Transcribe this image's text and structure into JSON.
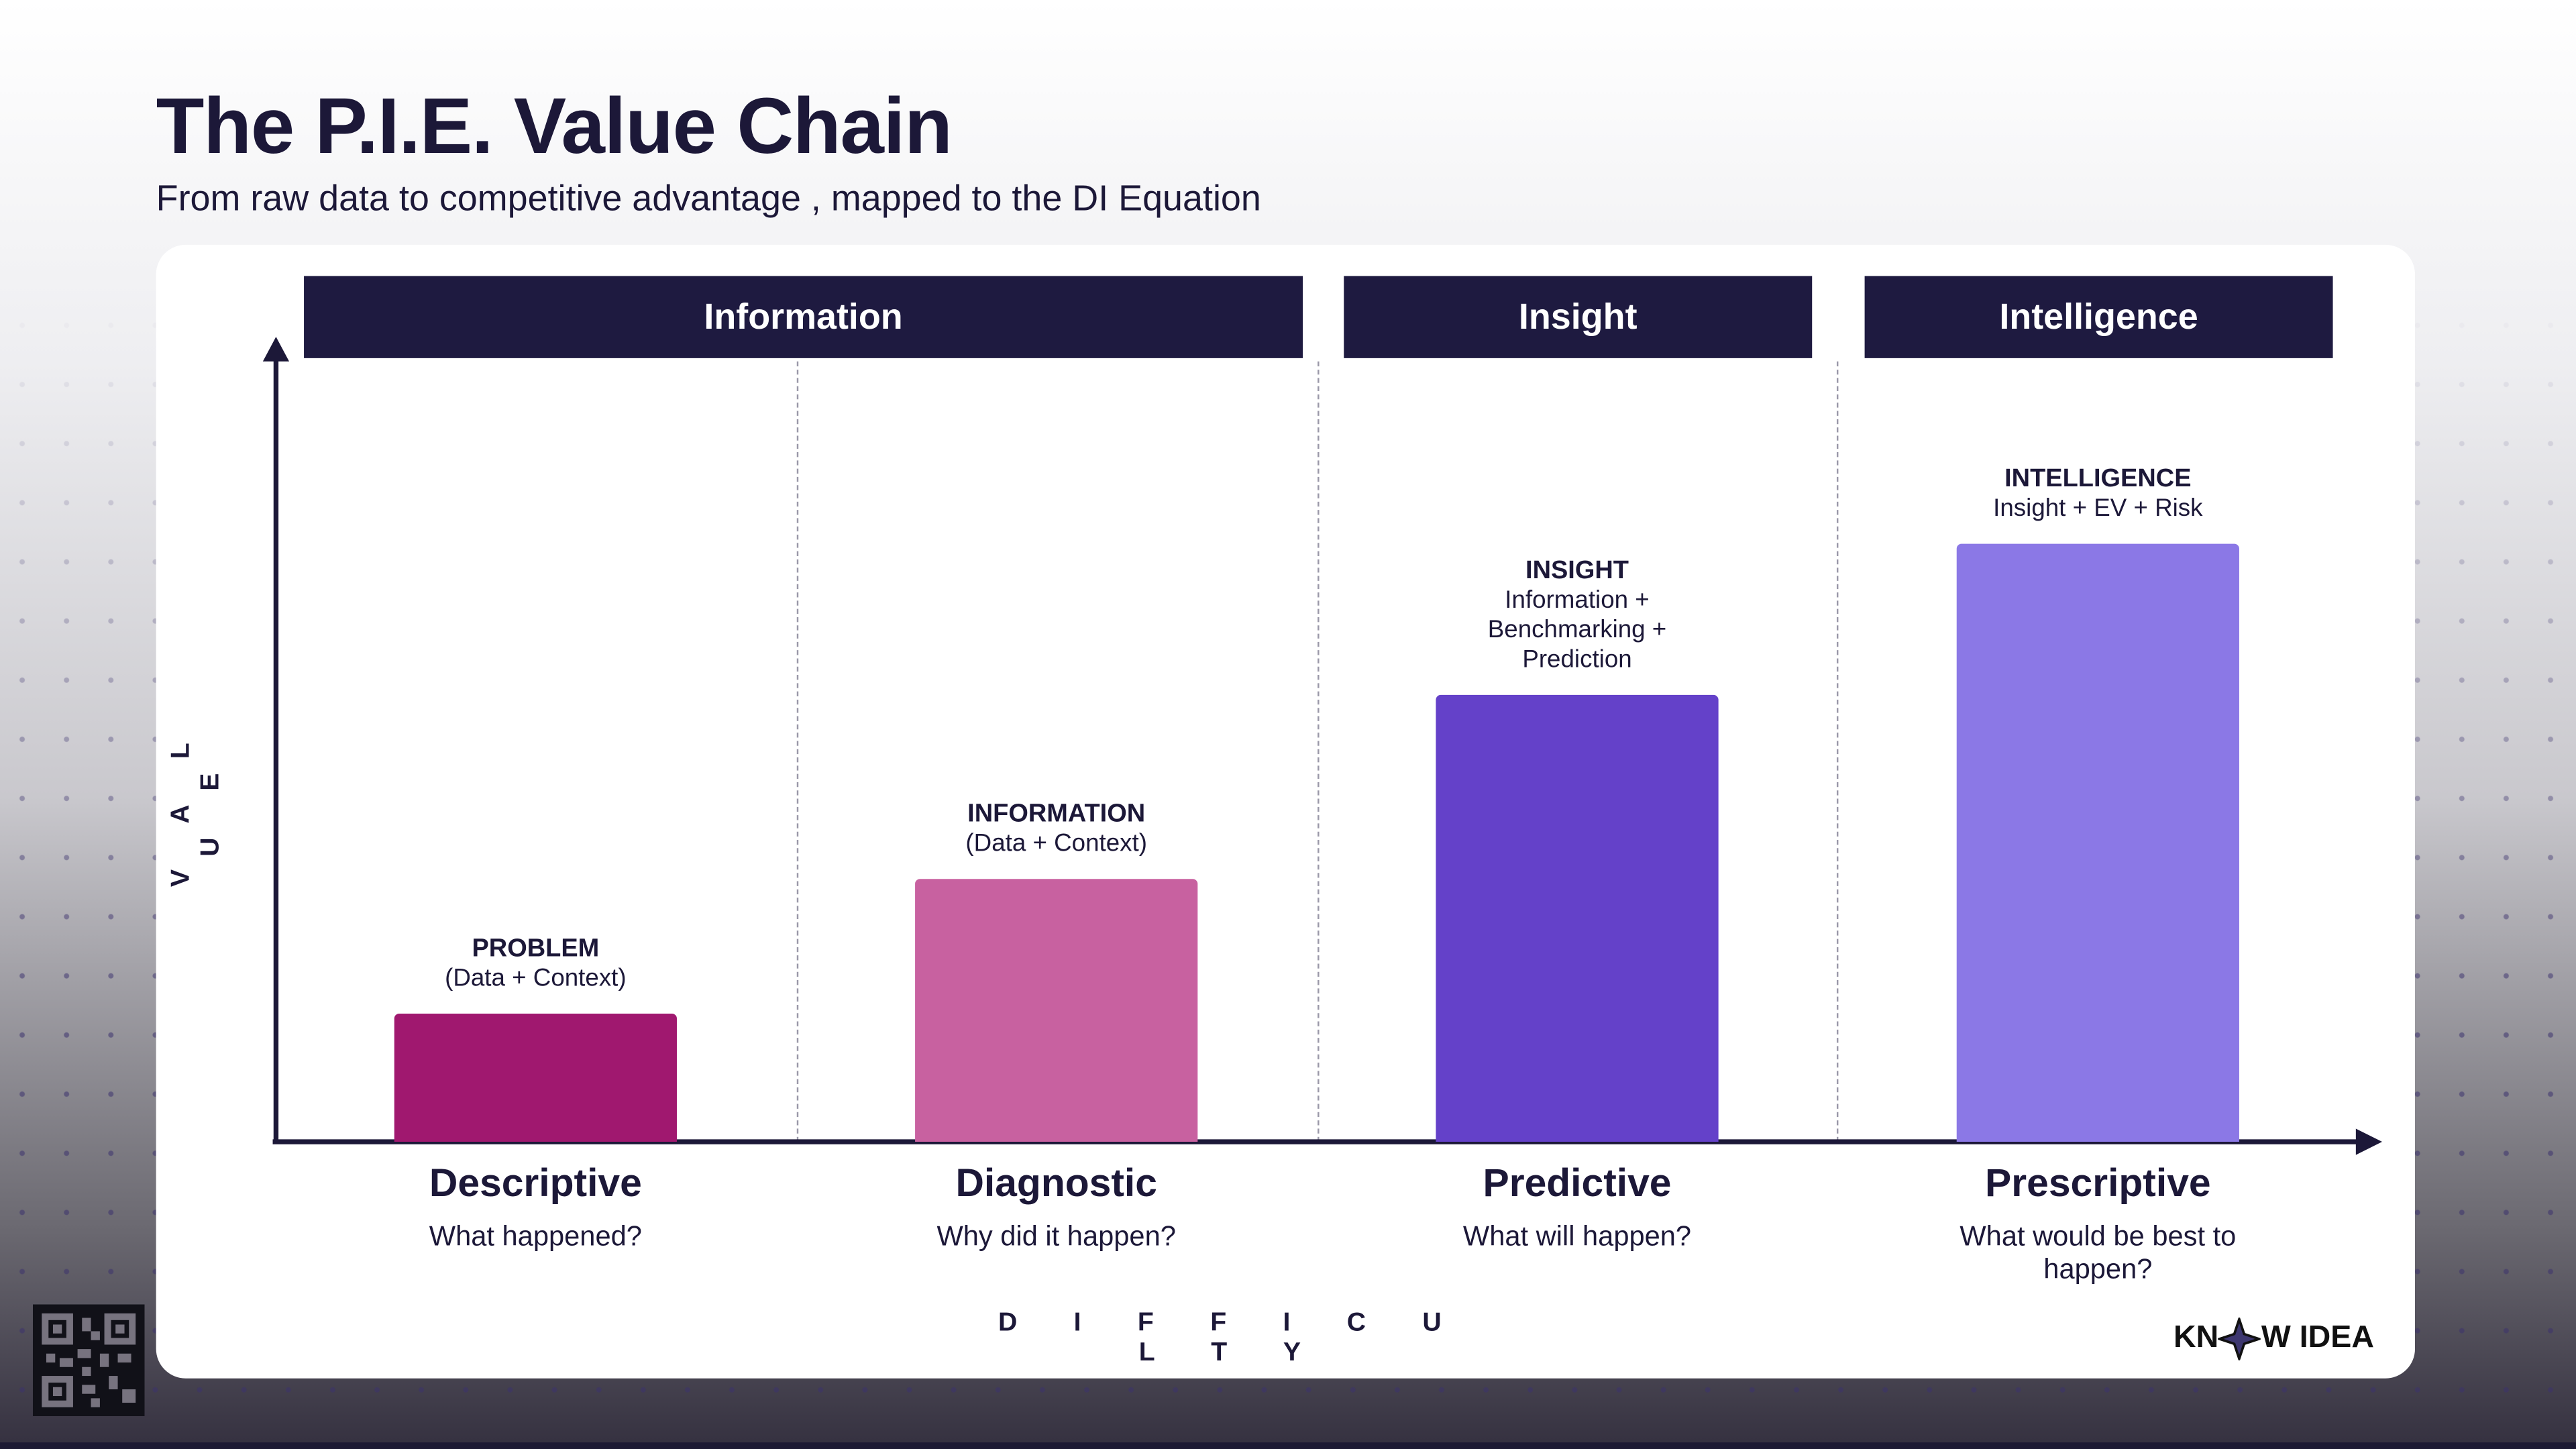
{
  "header": {
    "title": "The P.I.E. Value Chain",
    "subtitle": "From raw data to competitive advantage , mapped to the DI Equation"
  },
  "stages": [
    {
      "label": "Information"
    },
    {
      "label": "Insight"
    },
    {
      "label": "Intelligence"
    }
  ],
  "axes": {
    "y_label": "V A L U E",
    "x_label": "D I F F I C U L T Y"
  },
  "columns": [
    {
      "name": "Descriptive",
      "question": "What happened?",
      "bar_title": "PROBLEM",
      "bar_sub": "(Data + Context)",
      "relative_value": 16,
      "color": "#a0186f"
    },
    {
      "name": "Diagnostic",
      "question": "Why did it happen?",
      "bar_title": "INFORMATION",
      "bar_sub": "(Data + Context)",
      "relative_value": 33,
      "color": "#c861a0"
    },
    {
      "name": "Predictive",
      "question": "What will happen?",
      "bar_title": "INSIGHT",
      "bar_sub": "Information + Benchmarking + Prediction",
      "relative_value": 56,
      "color": "#6441c9"
    },
    {
      "name": "Prescriptive",
      "question": "What would be best to happen?",
      "bar_title": "INTELLIGENCE",
      "bar_sub": "Insight + EV + Risk",
      "relative_value": 75,
      "color": "#8b78e6"
    }
  ],
  "logo": {
    "text": "KNOW IDEA",
    "left": "KN",
    "right": "W IDEA"
  },
  "colors": {
    "header_bg": "#1e1a40",
    "text": "#1c1838"
  }
}
